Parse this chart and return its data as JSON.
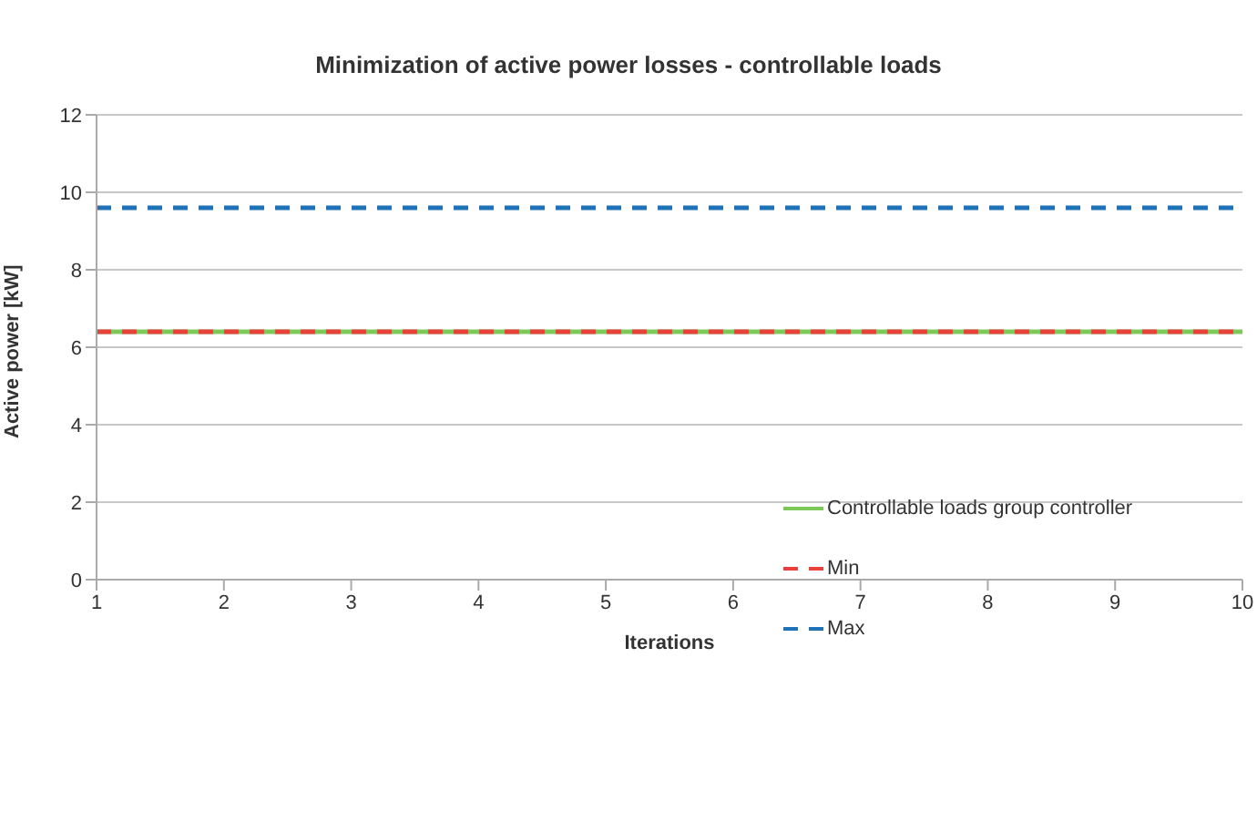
{
  "chart_data": {
    "type": "line",
    "title": "Minimization of active power losses - controllable loads",
    "xlabel": "Iterations",
    "ylabel": "Active power [kW]",
    "categories": [
      "1",
      "2",
      "3",
      "4",
      "5",
      "6",
      "7",
      "8",
      "9",
      "10"
    ],
    "series": [
      {
        "name": "Controllable loads group controller",
        "color": "#7cc95a",
        "line_style": "solid",
        "values": [
          6.4,
          6.4,
          6.4,
          6.4,
          6.4,
          6.4,
          6.4,
          6.4,
          6.4,
          6.4
        ]
      },
      {
        "name": "Min",
        "color": "#e8403a",
        "line_style": "dashed",
        "values": [
          6.4,
          6.4,
          6.4,
          6.4,
          6.4,
          6.4,
          6.4,
          6.4,
          6.4,
          6.4
        ]
      },
      {
        "name": "Max",
        "color": "#1f72b8",
        "line_style": "dashed",
        "values": [
          9.6,
          9.6,
          9.6,
          9.6,
          9.6,
          9.6,
          9.6,
          9.6,
          9.6,
          9.6
        ]
      }
    ],
    "ylim": [
      0,
      12
    ],
    "yticks": [
      0,
      2,
      4,
      6,
      8,
      10,
      12
    ],
    "grid": "y",
    "legend": "right",
    "marker": "none"
  }
}
